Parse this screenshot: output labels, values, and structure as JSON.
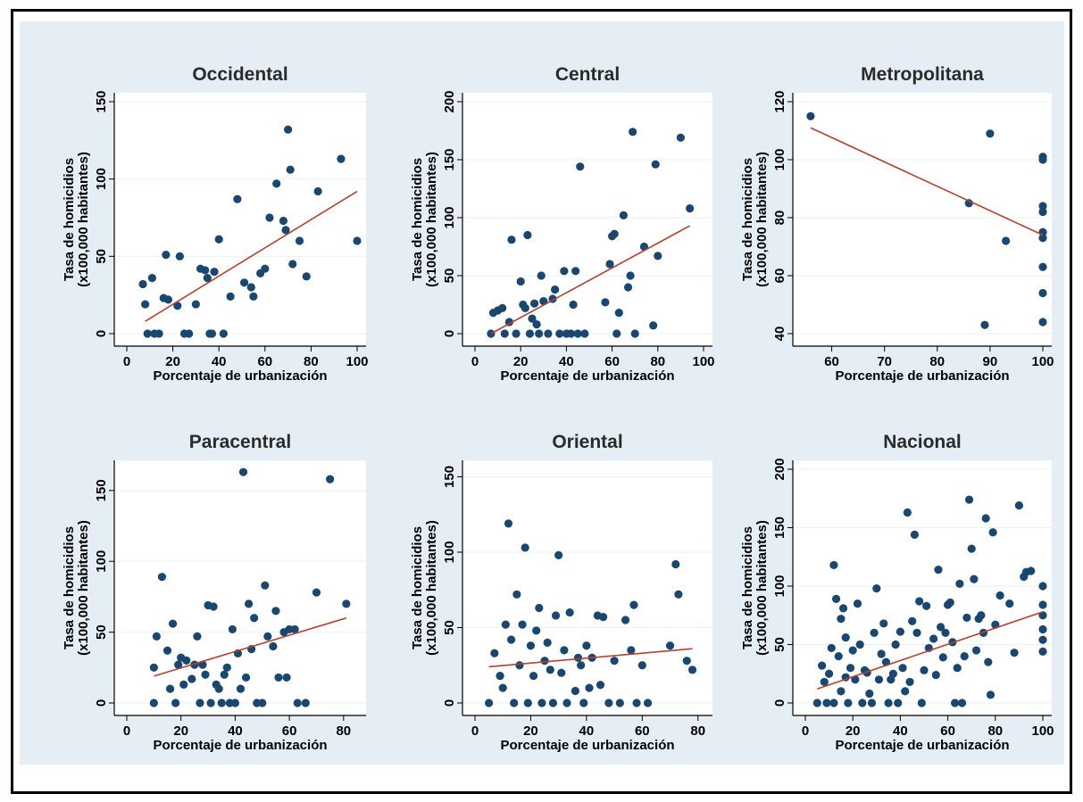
{
  "colors": {
    "panel_bg": "#e5eef4",
    "plot_bg": "#ffffff",
    "marker": "#1a476f",
    "fit_line": "#b5412f",
    "grid": "#eaf2f3"
  },
  "chart_data": [
    {
      "type": "scatter",
      "title": "Occidental",
      "xlabel": "Porcentaje de urbanización",
      "ylabel": "Tasa de homicidios",
      "ylabel2": "(x100,000 habitantes)",
      "xlim": [
        0,
        100
      ],
      "ylim": [
        0,
        150
      ],
      "xticks": [
        0,
        20,
        40,
        60,
        80,
        100
      ],
      "yticks": [
        0,
        50,
        100,
        150
      ],
      "grid": true,
      "points": [
        [
          7,
          32
        ],
        [
          8,
          19
        ],
        [
          9,
          0
        ],
        [
          11,
          36
        ],
        [
          12,
          0
        ],
        [
          14,
          0
        ],
        [
          16,
          23
        ],
        [
          17,
          51
        ],
        [
          18,
          22
        ],
        [
          22,
          18
        ],
        [
          23,
          50
        ],
        [
          25,
          0
        ],
        [
          27,
          0
        ],
        [
          30,
          19
        ],
        [
          32,
          42
        ],
        [
          34,
          41
        ],
        [
          35,
          36
        ],
        [
          36,
          0
        ],
        [
          37,
          0
        ],
        [
          38,
          40
        ],
        [
          40,
          61
        ],
        [
          42,
          0
        ],
        [
          45,
          24
        ],
        [
          48,
          87
        ],
        [
          51,
          33
        ],
        [
          54,
          30
        ],
        [
          55,
          24
        ],
        [
          58,
          39
        ],
        [
          60,
          42
        ],
        [
          62,
          75
        ],
        [
          65,
          97
        ],
        [
          68,
          73
        ],
        [
          69,
          67
        ],
        [
          70,
          132
        ],
        [
          71,
          106
        ],
        [
          72,
          45
        ],
        [
          75,
          60
        ],
        [
          78,
          37
        ],
        [
          83,
          92
        ],
        [
          93,
          113
        ],
        [
          100,
          60
        ]
      ],
      "fit": [
        [
          8,
          8
        ],
        [
          100,
          92
        ]
      ]
    },
    {
      "type": "scatter",
      "title": "Central",
      "xlabel": "Porcentaje de urbanización",
      "ylabel": "Tasa de homicidios",
      "ylabel2": "(x100,000 habitantes)",
      "xlim": [
        0,
        100
      ],
      "ylim": [
        0,
        200
      ],
      "xticks": [
        0,
        20,
        40,
        60,
        80,
        100
      ],
      "yticks": [
        0,
        50,
        100,
        150,
        200
      ],
      "grid": true,
      "points": [
        [
          7,
          0
        ],
        [
          8,
          18
        ],
        [
          10,
          20
        ],
        [
          12,
          22
        ],
        [
          13,
          0
        ],
        [
          15,
          10
        ],
        [
          16,
          81
        ],
        [
          18,
          0
        ],
        [
          20,
          45
        ],
        [
          21,
          25
        ],
        [
          22,
          22
        ],
        [
          23,
          85
        ],
        [
          24,
          0
        ],
        [
          25,
          13
        ],
        [
          26,
          26
        ],
        [
          27,
          8
        ],
        [
          28,
          0
        ],
        [
          29,
          50
        ],
        [
          30,
          28
        ],
        [
          32,
          0
        ],
        [
          34,
          30
        ],
        [
          35,
          38
        ],
        [
          37,
          0
        ],
        [
          39,
          54
        ],
        [
          40,
          0
        ],
        [
          42,
          0
        ],
        [
          43,
          25
        ],
        [
          44,
          54
        ],
        [
          45,
          0
        ],
        [
          46,
          144
        ],
        [
          48,
          0
        ],
        [
          57,
          27
        ],
        [
          59,
          60
        ],
        [
          60,
          84
        ],
        [
          61,
          86
        ],
        [
          62,
          0
        ],
        [
          63,
          18
        ],
        [
          65,
          102
        ],
        [
          67,
          40
        ],
        [
          68,
          50
        ],
        [
          69,
          174
        ],
        [
          70,
          0
        ],
        [
          74,
          75
        ],
        [
          78,
          7
        ],
        [
          79,
          146
        ],
        [
          80,
          67
        ],
        [
          90,
          169
        ],
        [
          94,
          108
        ]
      ],
      "fit": [
        [
          7,
          0
        ],
        [
          94,
          93
        ]
      ]
    },
    {
      "type": "scatter",
      "title": "Metropolitana",
      "xlabel": "Porcentaje de urbanización",
      "ylabel": "Tasa de homicidios",
      "ylabel2": "(x100,000 habitantes)",
      "xlim": [
        55,
        100
      ],
      "ylim": [
        40,
        120
      ],
      "xticks": [
        60,
        70,
        80,
        90,
        100
      ],
      "yticks": [
        40,
        60,
        80,
        100,
        120
      ],
      "grid": true,
      "points": [
        [
          56,
          115
        ],
        [
          86,
          85
        ],
        [
          89,
          43
        ],
        [
          90,
          109
        ],
        [
          93,
          72
        ],
        [
          100,
          100
        ],
        [
          100,
          101
        ],
        [
          100,
          84
        ],
        [
          100,
          82
        ],
        [
          100,
          75
        ],
        [
          100,
          73
        ],
        [
          100,
          63
        ],
        [
          100,
          54
        ],
        [
          100,
          44
        ]
      ],
      "fit": [
        [
          56,
          111
        ],
        [
          100,
          74
        ]
      ]
    },
    {
      "type": "scatter",
      "title": "Paracentral",
      "xlabel": "Porcentaje de urbanización",
      "ylabel": "Tasa de homicidios",
      "ylabel2": "(x100,000 habitantes)",
      "xlim": [
        0,
        85
      ],
      "ylim": [
        0,
        165
      ],
      "xticks": [
        0,
        20,
        40,
        60,
        80
      ],
      "yticks": [
        0,
        50,
        100,
        150
      ],
      "grid": true,
      "points": [
        [
          10,
          25
        ],
        [
          10,
          0
        ],
        [
          11,
          47
        ],
        [
          13,
          89
        ],
        [
          15,
          37
        ],
        [
          16,
          10
        ],
        [
          17,
          56
        ],
        [
          18,
          0
        ],
        [
          19,
          27
        ],
        [
          20,
          32
        ],
        [
          21,
          13
        ],
        [
          22,
          30
        ],
        [
          24,
          17
        ],
        [
          25,
          27
        ],
        [
          26,
          47
        ],
        [
          27,
          0
        ],
        [
          28,
          27
        ],
        [
          29,
          20
        ],
        [
          30,
          69
        ],
        [
          31,
          0
        ],
        [
          32,
          68
        ],
        [
          33,
          13
        ],
        [
          34,
          10
        ],
        [
          35,
          0
        ],
        [
          36,
          20
        ],
        [
          37,
          25
        ],
        [
          38,
          0
        ],
        [
          39,
          52
        ],
        [
          40,
          0
        ],
        [
          41,
          35
        ],
        [
          42,
          10
        ],
        [
          43,
          163
        ],
        [
          44,
          18
        ],
        [
          45,
          70
        ],
        [
          46,
          38
        ],
        [
          47,
          60
        ],
        [
          48,
          0
        ],
        [
          50,
          0
        ],
        [
          51,
          83
        ],
        [
          52,
          47
        ],
        [
          54,
          40
        ],
        [
          55,
          65
        ],
        [
          56,
          18
        ],
        [
          58,
          50
        ],
        [
          59,
          18
        ],
        [
          60,
          52
        ],
        [
          62,
          52
        ],
        [
          63,
          0
        ],
        [
          66,
          0
        ],
        [
          70,
          78
        ],
        [
          75,
          158
        ],
        [
          81,
          70
        ]
      ],
      "fit": [
        [
          10,
          19
        ],
        [
          81,
          60
        ]
      ]
    },
    {
      "type": "scatter",
      "title": "Oriental",
      "xlabel": "Porcentaje de urbanización",
      "ylabel": "Tasa de homicidios",
      "ylabel2": "(x100,000 habitantes)",
      "xlim": [
        0,
        82
      ],
      "ylim": [
        0,
        155
      ],
      "xticks": [
        0,
        20,
        40,
        60,
        80
      ],
      "yticks": [
        0,
        50,
        100,
        150
      ],
      "grid": true,
      "points": [
        [
          5,
          0
        ],
        [
          7,
          33
        ],
        [
          9,
          18
        ],
        [
          10,
          10
        ],
        [
          11,
          52
        ],
        [
          12,
          119
        ],
        [
          13,
          42
        ],
        [
          14,
          0
        ],
        [
          15,
          72
        ],
        [
          16,
          25
        ],
        [
          17,
          52
        ],
        [
          18,
          103
        ],
        [
          19,
          0
        ],
        [
          20,
          38
        ],
        [
          21,
          18
        ],
        [
          22,
          48
        ],
        [
          23,
          63
        ],
        [
          24,
          0
        ],
        [
          25,
          28
        ],
        [
          26,
          40
        ],
        [
          27,
          22
        ],
        [
          28,
          0
        ],
        [
          29,
          58
        ],
        [
          30,
          98
        ],
        [
          31,
          20
        ],
        [
          32,
          35
        ],
        [
          33,
          0
        ],
        [
          34,
          60
        ],
        [
          36,
          8
        ],
        [
          37,
          30
        ],
        [
          38,
          25
        ],
        [
          39,
          0
        ],
        [
          40,
          38
        ],
        [
          41,
          10
        ],
        [
          42,
          30
        ],
        [
          44,
          58
        ],
        [
          45,
          12
        ],
        [
          46,
          57
        ],
        [
          48,
          0
        ],
        [
          50,
          28
        ],
        [
          52,
          0
        ],
        [
          54,
          55
        ],
        [
          56,
          35
        ],
        [
          57,
          65
        ],
        [
          58,
          0
        ],
        [
          60,
          25
        ],
        [
          62,
          0
        ],
        [
          70,
          38
        ],
        [
          72,
          92
        ],
        [
          73,
          72
        ],
        [
          76,
          28
        ],
        [
          78,
          22
        ]
      ],
      "fit": [
        [
          5,
          24
        ],
        [
          78,
          36
        ]
      ]
    },
    {
      "type": "scatter",
      "title": "Nacional",
      "xlabel": "Porcentaje de urbanización",
      "ylabel": "Tasa de homicidios",
      "ylabel2": "(x100,000 habitantes)",
      "xlim": [
        0,
        100
      ],
      "ylim": [
        0,
        200
      ],
      "xticks": [
        0,
        20,
        40,
        60,
        80,
        100
      ],
      "yticks": [
        0,
        50,
        100,
        150,
        200
      ],
      "grid": true,
      "points": [
        [
          5,
          0
        ],
        [
          7,
          32
        ],
        [
          8,
          18
        ],
        [
          9,
          0
        ],
        [
          10,
          25
        ],
        [
          11,
          47
        ],
        [
          12,
          118
        ],
        [
          12,
          0
        ],
        [
          13,
          89
        ],
        [
          14,
          40
        ],
        [
          15,
          72
        ],
        [
          15,
          10
        ],
        [
          16,
          81
        ],
        [
          17,
          56
        ],
        [
          17,
          22
        ],
        [
          18,
          0
        ],
        [
          19,
          30
        ],
        [
          20,
          45
        ],
        [
          21,
          20
        ],
        [
          22,
          85
        ],
        [
          23,
          50
        ],
        [
          24,
          0
        ],
        [
          25,
          28
        ],
        [
          26,
          26
        ],
        [
          27,
          8
        ],
        [
          28,
          0
        ],
        [
          29,
          60
        ],
        [
          30,
          98
        ],
        [
          31,
          20
        ],
        [
          32,
          42
        ],
        [
          33,
          68
        ],
        [
          34,
          35
        ],
        [
          35,
          0
        ],
        [
          36,
          20
        ],
        [
          37,
          25
        ],
        [
          38,
          50
        ],
        [
          39,
          0
        ],
        [
          40,
          61
        ],
        [
          41,
          30
        ],
        [
          42,
          10
        ],
        [
          43,
          163
        ],
        [
          44,
          18
        ],
        [
          45,
          70
        ],
        [
          46,
          144
        ],
        [
          47,
          60
        ],
        [
          48,
          87
        ],
        [
          49,
          0
        ],
        [
          50,
          28
        ],
        [
          51,
          83
        ],
        [
          52,
          47
        ],
        [
          54,
          55
        ],
        [
          55,
          24
        ],
        [
          56,
          114
        ],
        [
          57,
          65
        ],
        [
          58,
          39
        ],
        [
          59,
          60
        ],
        [
          60,
          84
        ],
        [
          61,
          86
        ],
        [
          62,
          52
        ],
        [
          63,
          0
        ],
        [
          64,
          30
        ],
        [
          65,
          102
        ],
        [
          66,
          0
        ],
        [
          67,
          40
        ],
        [
          68,
          73
        ],
        [
          69,
          174
        ],
        [
          70,
          132
        ],
        [
          71,
          106
        ],
        [
          72,
          45
        ],
        [
          73,
          72
        ],
        [
          74,
          75
        ],
        [
          75,
          60
        ],
        [
          76,
          158
        ],
        [
          77,
          35
        ],
        [
          78,
          7
        ],
        [
          79,
          146
        ],
        [
          80,
          67
        ],
        [
          82,
          92
        ],
        [
          86,
          85
        ],
        [
          88,
          43
        ],
        [
          90,
          169
        ],
        [
          92,
          108
        ],
        [
          93,
          112
        ],
        [
          95,
          113
        ],
        [
          100,
          100
        ],
        [
          100,
          84
        ],
        [
          100,
          75
        ],
        [
          100,
          63
        ],
        [
          100,
          54
        ],
        [
          100,
          44
        ]
      ],
      "fit": [
        [
          5,
          12
        ],
        [
          100,
          78
        ]
      ]
    }
  ]
}
